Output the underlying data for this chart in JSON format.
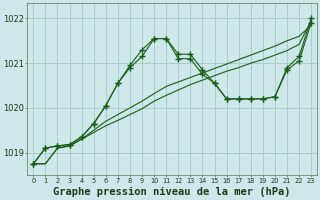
{
  "bg_color": "#cce8e8",
  "grid_color": "#aacccc",
  "line_color": "#1a5c1a",
  "x": [
    0,
    1,
    2,
    3,
    4,
    5,
    6,
    7,
    8,
    9,
    10,
    11,
    12,
    13,
    14,
    15,
    16,
    17,
    18,
    19,
    20,
    21,
    22,
    23
  ],
  "series1": [
    1018.75,
    1018.75,
    1019.1,
    1019.15,
    1019.3,
    1019.45,
    1019.6,
    1019.72,
    1019.85,
    1019.98,
    1020.15,
    1020.28,
    1020.4,
    1020.52,
    1020.62,
    1020.72,
    1020.82,
    1020.9,
    1021.0,
    1021.08,
    1021.18,
    1021.28,
    1021.42,
    1021.95
  ],
  "series2": [
    1018.75,
    1018.75,
    1019.1,
    1019.15,
    1019.3,
    1019.5,
    1019.7,
    1019.85,
    1020.0,
    1020.15,
    1020.32,
    1020.48,
    1020.58,
    1020.68,
    1020.78,
    1020.88,
    1020.98,
    1021.08,
    1021.18,
    1021.28,
    1021.38,
    1021.5,
    1021.6,
    1021.85
  ],
  "series3": [
    1018.75,
    1019.1,
    1019.15,
    1019.18,
    1019.35,
    1019.65,
    1020.05,
    1020.55,
    1020.95,
    1021.3,
    1021.55,
    1021.55,
    1021.2,
    1021.2,
    1020.85,
    1020.55,
    1020.2,
    1020.2,
    1020.2,
    1020.2,
    1020.25,
    1020.9,
    1021.15,
    1022.0
  ],
  "series4": [
    1018.75,
    1019.1,
    1019.15,
    1019.18,
    1019.35,
    1019.65,
    1020.05,
    1020.55,
    1020.9,
    1021.15,
    1021.55,
    1021.55,
    1021.1,
    1021.1,
    1020.75,
    1020.55,
    1020.2,
    1020.2,
    1020.2,
    1020.2,
    1020.25,
    1020.85,
    1021.05,
    1021.9
  ],
  "yticks": [
    1019,
    1020,
    1021,
    1022
  ],
  "ylim": [
    1018.5,
    1022.35
  ],
  "xlim": [
    -0.5,
    23.5
  ],
  "xlabel": "Graphe pression niveau de la mer (hPa)",
  "xlabel_fontsize": 7.5
}
